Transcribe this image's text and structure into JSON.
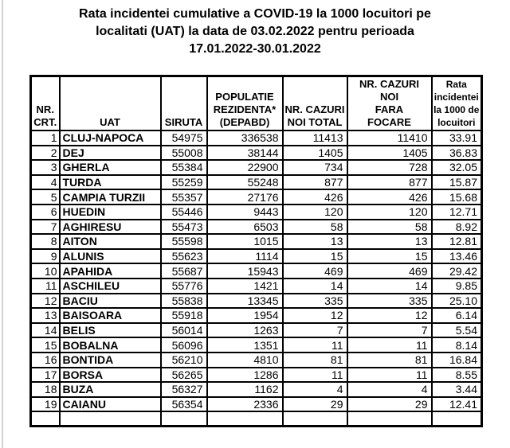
{
  "page": {
    "background_color": "#ffffff",
    "edge_line_color": "#d2d2d2",
    "text_color": "#000000",
    "border_color": "#000000"
  },
  "title": {
    "lines": [
      "Rata incidentei cumulative a COVID-19 la 1000 locuitori pe",
      "localitati (UAT) la data de 03.02.2022 pentru perioada",
      "17.01.2022-30.01.2022"
    ]
  },
  "table": {
    "headers": [
      {
        "id": "nr-crt",
        "lines": [
          "NR.",
          "CRT."
        ]
      },
      {
        "id": "uat",
        "lines": [
          "UAT"
        ]
      },
      {
        "id": "siruta",
        "lines": [
          "SIRUTA"
        ]
      },
      {
        "id": "populatie",
        "lines": [
          "POPULATIE",
          "REZIDENTA*",
          "(DEPABD)"
        ]
      },
      {
        "id": "cazuri-noi-total",
        "lines": [
          "NR. CAZURI",
          "NOI TOTAL"
        ]
      },
      {
        "id": "cazuri-noi-fara-focare",
        "lines": [
          "NR. CAZURI",
          "NOI",
          "FARA",
          "FOCARE"
        ]
      },
      {
        "id": "rata-incidentei",
        "lines": [
          "Rata",
          "incidentei",
          "la 1000 de",
          "locuitori"
        ]
      }
    ],
    "rows": [
      [
        "1",
        "CLUJ-NAPOCA",
        "54975",
        "336538",
        "11413",
        "11410",
        "33.91"
      ],
      [
        "2",
        "DEJ",
        "55008",
        "38144",
        "1405",
        "1405",
        "36.83"
      ],
      [
        "3",
        "GHERLA",
        "55384",
        "22900",
        "734",
        "728",
        "32.05"
      ],
      [
        "4",
        "TURDA",
        "55259",
        "55248",
        "877",
        "877",
        "15.87"
      ],
      [
        "5",
        "CAMPIA TURZII",
        "55357",
        "27176",
        "426",
        "426",
        "15.68"
      ],
      [
        "6",
        "HUEDIN",
        "55446",
        "9443",
        "120",
        "120",
        "12.71"
      ],
      [
        "7",
        "AGHIRESU",
        "55473",
        "6503",
        "58",
        "58",
        "8.92"
      ],
      [
        "8",
        "AITON",
        "55598",
        "1015",
        "13",
        "13",
        "12.81"
      ],
      [
        "9",
        "ALUNIS",
        "55623",
        "1114",
        "15",
        "15",
        "13.46"
      ],
      [
        "10",
        "APAHIDA",
        "55687",
        "15943",
        "469",
        "469",
        "29.42"
      ],
      [
        "11",
        "ASCHILEU",
        "55776",
        "1421",
        "14",
        "14",
        "9.85"
      ],
      [
        "12",
        "BACIU",
        "55838",
        "13345",
        "335",
        "335",
        "25.10"
      ],
      [
        "13",
        "BAISOARA",
        "55918",
        "1954",
        "12",
        "12",
        "6.14"
      ],
      [
        "14",
        "BELIS",
        "56014",
        "1263",
        "7",
        "7",
        "5.54"
      ],
      [
        "15",
        "BOBALNA",
        "56096",
        "1351",
        "11",
        "11",
        "8.14"
      ],
      [
        "16",
        "BONTIDA",
        "56210",
        "4810",
        "81",
        "81",
        "16.84"
      ],
      [
        "17",
        "BORSA",
        "56265",
        "1286",
        "11",
        "11",
        "8.55"
      ],
      [
        "18",
        "BUZA",
        "56327",
        "1162",
        "4",
        "4",
        "3.44"
      ],
      [
        "19",
        "CAIANU",
        "56354",
        "2336",
        "29",
        "29",
        "12.41"
      ]
    ]
  }
}
